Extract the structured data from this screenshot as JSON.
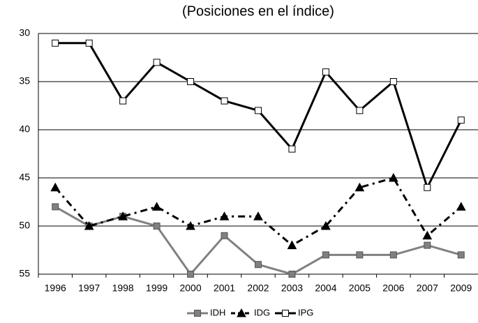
{
  "chart_data": {
    "type": "line",
    "subtitle": "(Posiciones en el índice)",
    "categories": [
      "1996",
      "1997",
      "1998",
      "1999",
      "2000",
      "2001",
      "2002",
      "2003",
      "2004",
      "2005",
      "2006",
      "2007",
      "2009"
    ],
    "series": [
      {
        "name": "IDH",
        "color": "#808080",
        "marker": "square",
        "marker_fill": "#808080",
        "dash": "none",
        "values": [
          48,
          50,
          49,
          50,
          55,
          51,
          54,
          55,
          53,
          53,
          53,
          52,
          53
        ]
      },
      {
        "name": "IDG",
        "color": "#000000",
        "marker": "triangle",
        "marker_fill": "#000000",
        "dash": "10 6 3 6",
        "values": [
          46,
          50,
          49,
          48,
          50,
          49,
          49,
          52,
          50,
          46,
          45,
          51,
          48
        ]
      },
      {
        "name": "IPG",
        "color": "#000000",
        "marker": "square",
        "marker_fill": "#ffffff",
        "dash": "none",
        "values": [
          31,
          31,
          37,
          33,
          35,
          37,
          38,
          42,
          34,
          38,
          35,
          46,
          39
        ]
      }
    ],
    "ylim": [
      30,
      55
    ],
    "y_inverted": true,
    "yticks": [
      30,
      35,
      40,
      45,
      50,
      55
    ],
    "grid": true,
    "legend": "bottom"
  }
}
